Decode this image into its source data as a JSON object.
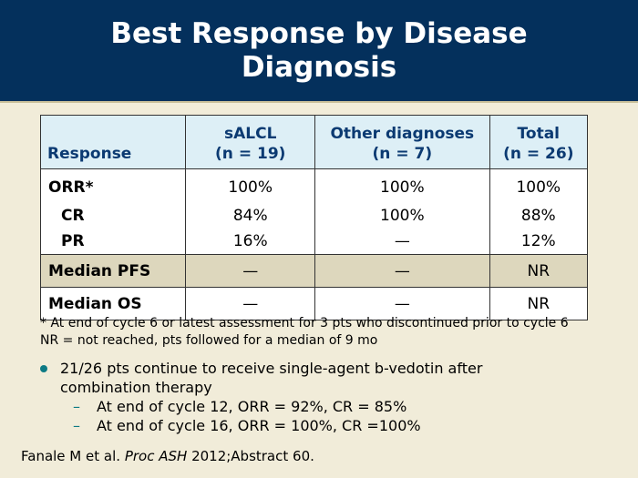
{
  "title": {
    "line1": "Best Response by Disease",
    "line2": "Diagnosis"
  },
  "table": {
    "headers": {
      "response": "Response",
      "salcl": {
        "name": "sALCL",
        "n": "(n = 19)"
      },
      "other": {
        "name": "Other diagnoses",
        "n": "(n = 7)"
      },
      "total": {
        "name": "Total",
        "n": "(n = 26)"
      }
    },
    "rows": [
      {
        "label": "ORR*",
        "salcl": "100%",
        "other": "100%",
        "total": "100%"
      },
      {
        "label": "CR",
        "salcl": "84%",
        "other": "100%",
        "total": "88%"
      },
      {
        "label": "PR",
        "salcl": "16%",
        "other": "—",
        "total": "12%"
      },
      {
        "label": "Median PFS",
        "salcl": "—",
        "other": "—",
        "total": "NR"
      },
      {
        "label": "Median OS",
        "salcl": "—",
        "other": "—",
        "total": "NR"
      }
    ]
  },
  "footnotes": [
    "* At end of cycle 6 or latest assessment for 3 pts who discontinued prior to cycle 6",
    "NR = not reached, pts followed for a median of 9 mo"
  ],
  "bullet": {
    "line1": "21/26 pts continue to receive single-agent b-vedotin after",
    "line2": "combination therapy",
    "subs": [
      "At end of cycle 12, ORR = 92%, CR = 85%",
      "At end of cycle 16, ORR = 100%, CR =100%"
    ]
  },
  "citation": {
    "authors": "Fanale M et al.",
    "journal": "Proc ASH",
    "rest": "2012;Abstract 60."
  }
}
